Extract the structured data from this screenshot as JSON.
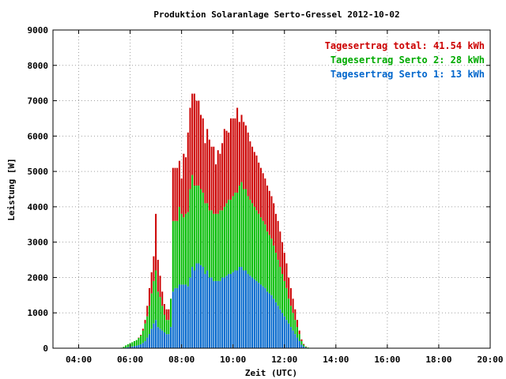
{
  "chart_data": {
    "type": "bar",
    "title": "Produktion Solaranlage Serto-Gressel 2012-10-02",
    "xlabel": "Zeit (UTC)",
    "ylabel": "Leistung [W]",
    "ylim": [
      0,
      9000
    ],
    "xlim_hours": [
      3,
      20
    ],
    "x_ticks": [
      "04:00",
      "06:00",
      "08:00",
      "10:00",
      "12:00",
      "14:00",
      "16:00",
      "18:00",
      "20:00"
    ],
    "y_ticks": [
      "0",
      "1000",
      "2000",
      "3000",
      "4000",
      "5000",
      "6000",
      "7000",
      "8000",
      "9000"
    ],
    "grid": true,
    "legend_position": "top-right",
    "stacked": true,
    "interval_minutes": 5,
    "first_bar_time": "05:40",
    "legend": [
      {
        "label": "Tagesertrag total: 41.54 kWh",
        "color": "#cc0000"
      },
      {
        "label": "Tagesertrag Serto 2: 28 kWh",
        "color": "#00bb00"
      },
      {
        "label": "Tagesertrag Serto 1: 13 kWh",
        "color": "#0066cc"
      }
    ],
    "series": [
      {
        "key": "serto1",
        "color": "#0066cc",
        "values": [
          5,
          10,
          20,
          30,
          40,
          50,
          60,
          70,
          90,
          110,
          150,
          200,
          300,
          400,
          550,
          700,
          800,
          600,
          550,
          500,
          450,
          400,
          400,
          600,
          1600,
          1700,
          1700,
          1800,
          1800,
          1800,
          1800,
          1750,
          2000,
          2300,
          2200,
          2400,
          2400,
          2350,
          2300,
          2100,
          2200,
          2000,
          2000,
          1900,
          1900,
          1900,
          1900,
          2000,
          2000,
          2050,
          2100,
          2100,
          2150,
          2200,
          2200,
          2300,
          2300,
          2200,
          2200,
          2100,
          2050,
          2000,
          1950,
          1900,
          1850,
          1800,
          1750,
          1700,
          1600,
          1550,
          1500,
          1400,
          1300,
          1200,
          1100,
          1000,
          900,
          800,
          700,
          600,
          500,
          400,
          300,
          200,
          100,
          50,
          20,
          10
        ]
      },
      {
        "key": "serto2",
        "color": "#00bb00",
        "values": [
          10,
          30,
          60,
          80,
          100,
          120,
          140,
          160,
          200,
          250,
          350,
          500,
          600,
          800,
          1000,
          1200,
          1400,
          1000,
          900,
          700,
          500,
          400,
          400,
          800,
          2000,
          1900,
          1900,
          2200,
          2000,
          1900,
          2000,
          2100,
          2500,
          2600,
          2400,
          2200,
          2200,
          2150,
          2100,
          2000,
          1900,
          1900,
          1900,
          1900,
          1900,
          1900,
          2000,
          1900,
          2000,
          2050,
          2100,
          2100,
          2150,
          2200,
          2200,
          2300,
          2400,
          2300,
          2300,
          2200,
          2150,
          2100,
          2050,
          2000,
          1950,
          1900,
          1850,
          1800,
          1700,
          1650,
          1600,
          1500,
          1400,
          1300,
          1200,
          1100,
          1000,
          900,
          700,
          600,
          500,
          400,
          300,
          200,
          100,
          50,
          20,
          10
        ]
      },
      {
        "key": "total_rest",
        "color": "#cc0000",
        "values": [
          0,
          0,
          0,
          0,
          0,
          0,
          0,
          0,
          10,
          20,
          50,
          100,
          300,
          500,
          600,
          700,
          1600,
          900,
          600,
          400,
          300,
          300,
          300,
          0,
          1500,
          1500,
          1500,
          1300,
          1000,
          1800,
          1600,
          2250,
          2300,
          2300,
          2600,
          2400,
          2400,
          2100,
          2100,
          1700,
          2100,
          2000,
          1800,
          1900,
          1400,
          1800,
          1600,
          1900,
          2200,
          2050,
          1900,
          2300,
          2200,
          2100,
          2400,
          1800,
          1900,
          1900,
          1800,
          1800,
          1650,
          1600,
          1550,
          1550,
          1450,
          1400,
          1350,
          1300,
          1300,
          1250,
          1200,
          1200,
          1100,
          1100,
          1000,
          900,
          800,
          700,
          600,
          500,
          400,
          300,
          200,
          100,
          50,
          20,
          10,
          0
        ]
      }
    ]
  }
}
